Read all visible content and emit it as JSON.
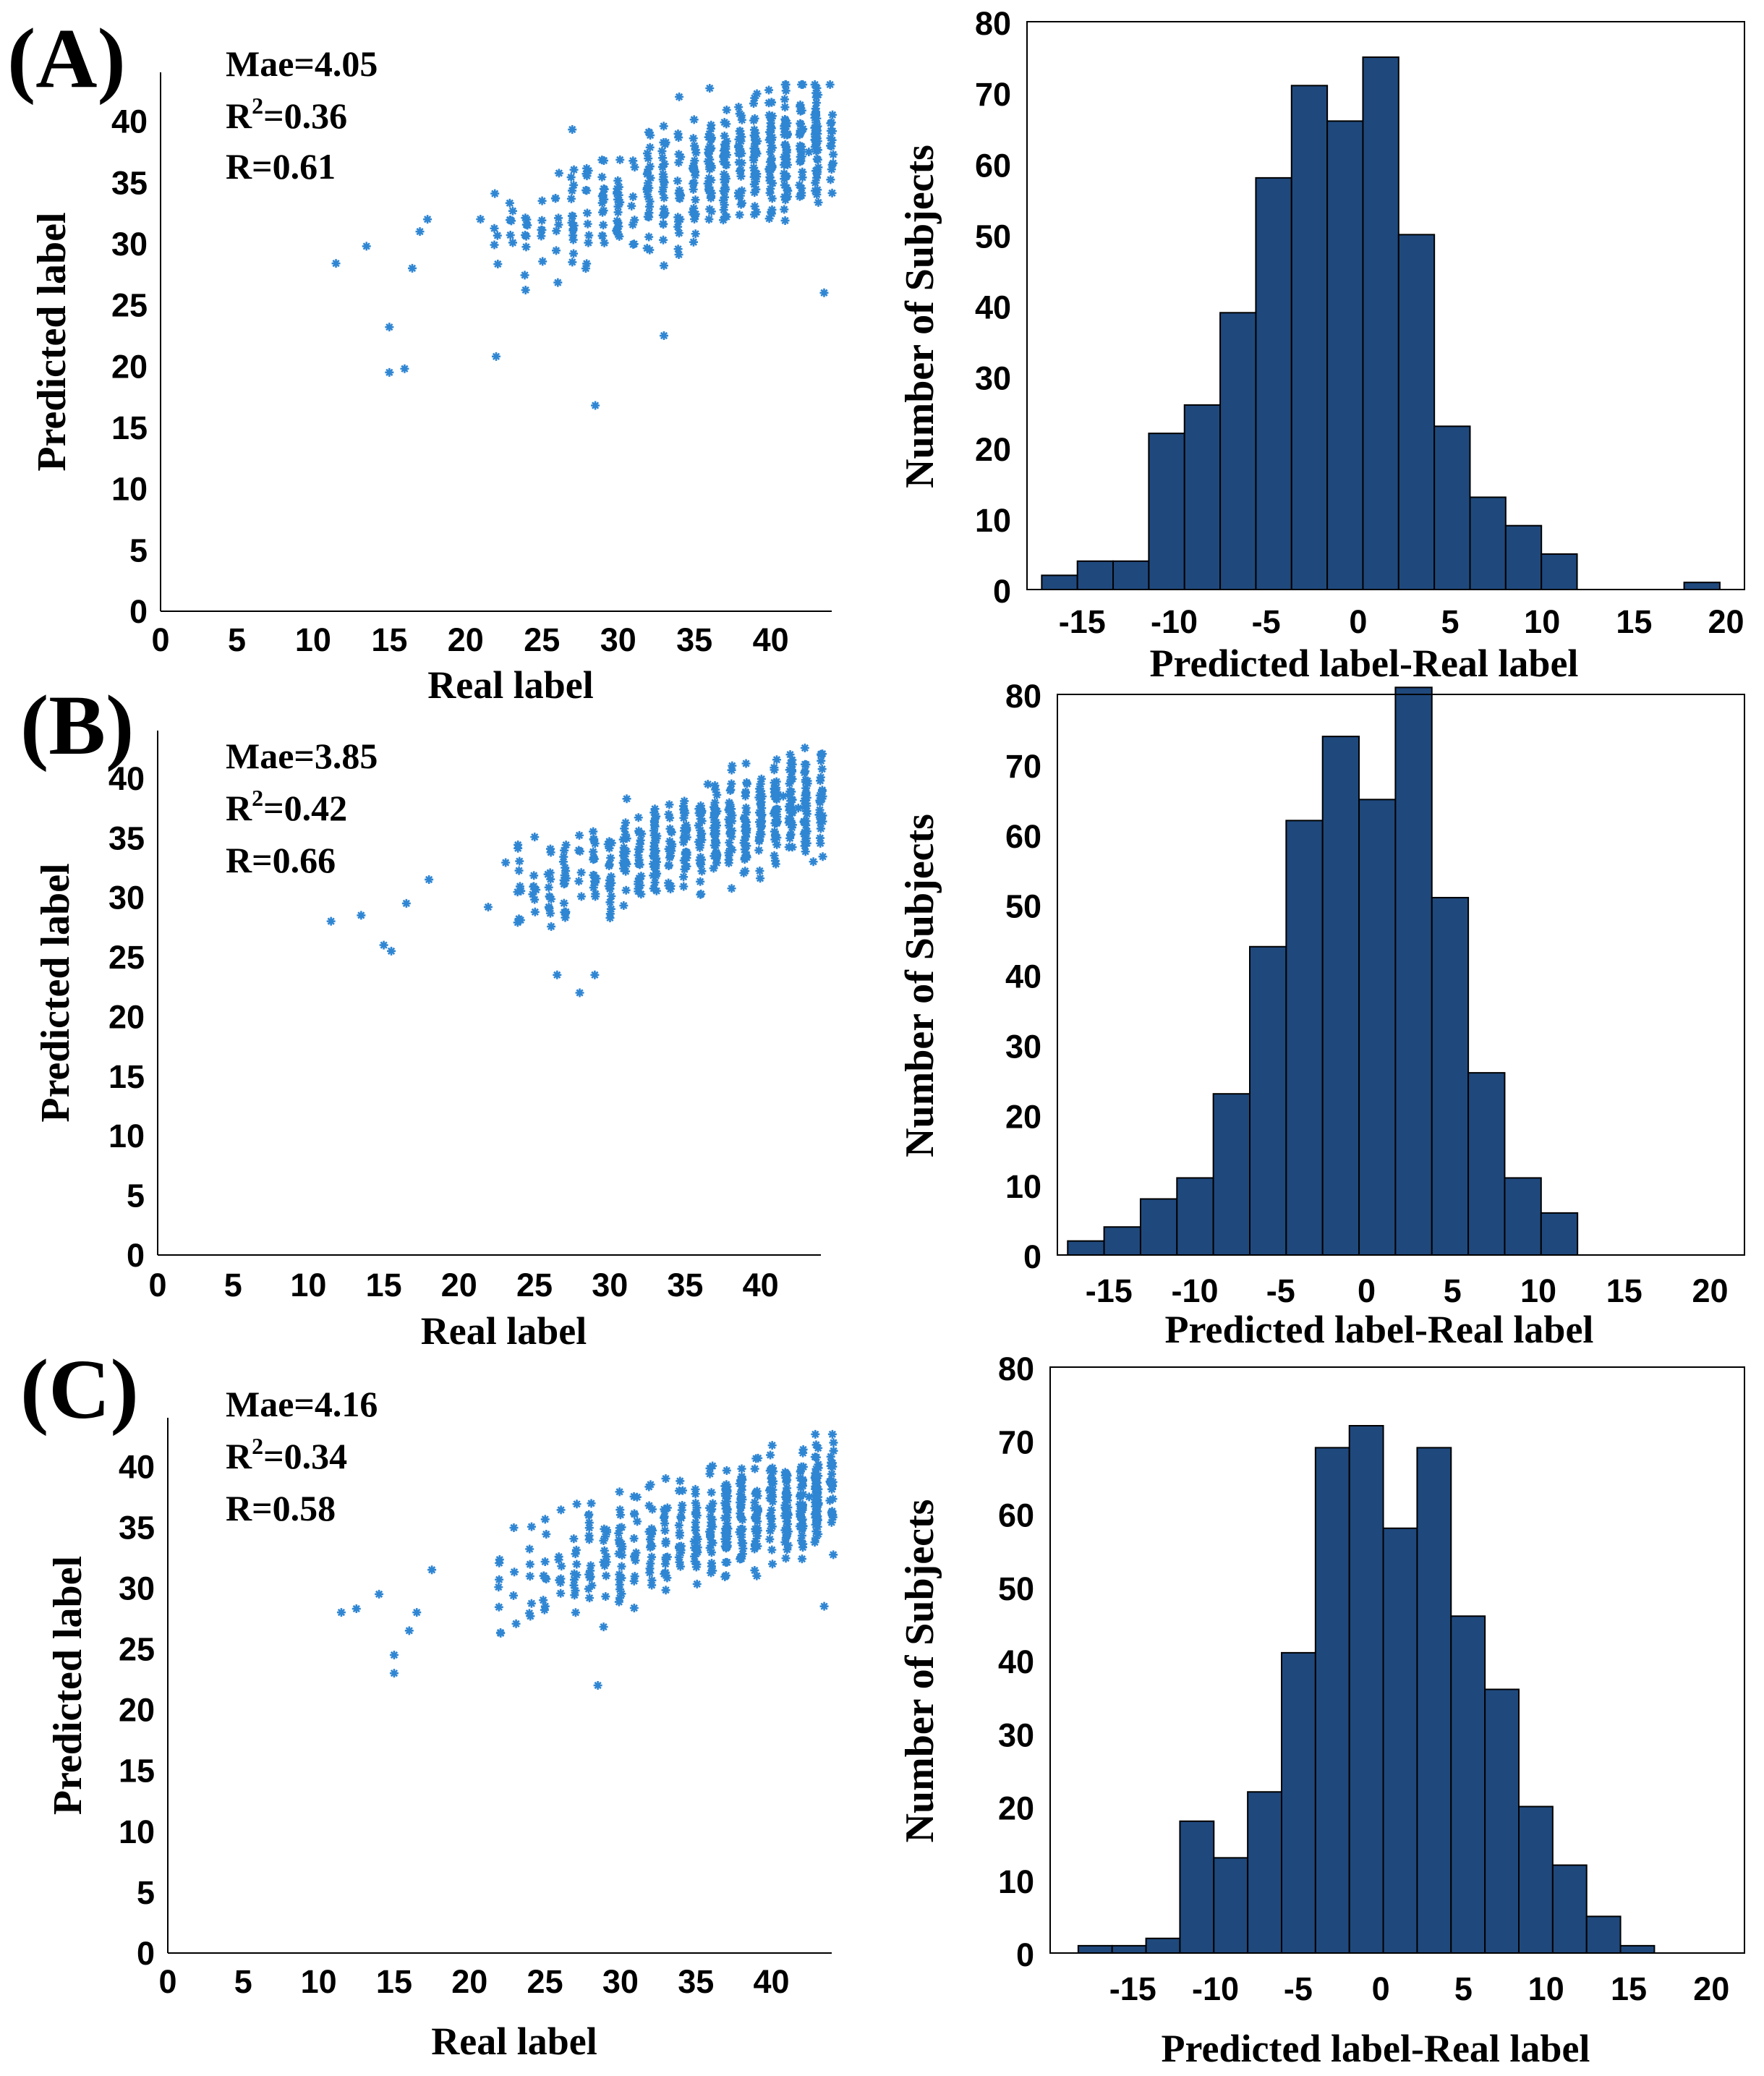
{
  "figure": {
    "colors": {
      "scatter": "#2f86d3",
      "bars": "#1f497d"
    },
    "panels": [
      {
        "label": "(A)",
        "stats": {
          "mae": "Mae=4.05",
          "r2_prefix": "R",
          "r2_sup": "2",
          "r2_value": "=0.36",
          "r": "R=0.61"
        }
      },
      {
        "label": "(B)",
        "stats": {
          "mae": "Mae=3.85",
          "r2_prefix": "R",
          "r2_sup": "2",
          "r2_value": "=0.42",
          "r": "R=0.66"
        }
      },
      {
        "label": "(C)",
        "stats": {
          "mae": "Mae=4.16",
          "r2_prefix": "R",
          "r2_sup": "2",
          "r2_value": "=0.34",
          "r": "R=0.58"
        }
      }
    ]
  },
  "chart_data": [
    {
      "type": "scatter",
      "panel": "A",
      "marker": "asterisk",
      "xlabel": "Real label",
      "ylabel": "Predicted label",
      "xlim": [
        0,
        44
      ],
      "ylim": [
        0,
        44
      ],
      "xticks": [
        0,
        5,
        10,
        15,
        20,
        25,
        30,
        35,
        40
      ],
      "yticks": [
        0,
        5,
        10,
        15,
        20,
        25,
        30,
        35,
        40
      ],
      "trend": {
        "slope": 0.37,
        "intercept": 22.5,
        "noise": 3.2,
        "n": 520,
        "x_range": [
          11,
          44
        ]
      },
      "points": [
        [
          11.5,
          28.4
        ],
        [
          13.5,
          29.8
        ],
        [
          15.0,
          19.5
        ],
        [
          16.0,
          19.8
        ],
        [
          15.0,
          23.2
        ],
        [
          16.5,
          28.0
        ],
        [
          17.0,
          31.0
        ],
        [
          17.5,
          32.0
        ],
        [
          28.5,
          16.8
        ],
        [
          22.0,
          20.8
        ],
        [
          33.0,
          22.5
        ],
        [
          43.5,
          26.0
        ],
        [
          42.5,
          37.5
        ],
        [
          41.0,
          42.5
        ],
        [
          36.0,
          42.7
        ],
        [
          34.0,
          42.0
        ]
      ]
    },
    {
      "type": "histogram",
      "panel": "A",
      "xlabel": "Predicted label-Real label",
      "ylabel": "Number of Subjects",
      "xlim": [
        -18,
        21
      ],
      "ylim": [
        0,
        80
      ],
      "xticks": [
        -15,
        -10,
        -5,
        0,
        5,
        10,
        15,
        20
      ],
      "yticks": [
        0,
        10,
        20,
        30,
        40,
        50,
        60,
        70,
        80
      ],
      "bin_width": 1.94,
      "bin_start": -17.2,
      "counts": [
        2,
        4,
        4,
        22,
        26,
        39,
        58,
        71,
        66,
        75,
        50,
        23,
        13,
        9,
        5,
        0,
        0,
        0,
        1
      ]
    },
    {
      "type": "scatter",
      "panel": "B",
      "marker": "asterisk",
      "xlabel": "Real label",
      "ylabel": "Predicted label",
      "xlim": [
        0,
        44
      ],
      "ylim": [
        0,
        44
      ],
      "xticks": [
        0,
        5,
        10,
        15,
        20,
        25,
        30,
        35,
        40
      ],
      "yticks": [
        0,
        5,
        10,
        15,
        20,
        25,
        30,
        35,
        40
      ],
      "trend": {
        "slope": 0.37,
        "intercept": 21.8,
        "noise": 2.6,
        "n": 520,
        "x_range": [
          11,
          44
        ]
      },
      "points": [
        [
          11.5,
          28.0
        ],
        [
          13.5,
          28.5
        ],
        [
          15.0,
          26.0
        ],
        [
          15.5,
          25.5
        ],
        [
          16.5,
          29.5
        ],
        [
          18.0,
          31.5
        ],
        [
          26.5,
          23.5
        ],
        [
          28.0,
          22.0
        ],
        [
          29.0,
          23.5
        ],
        [
          43.5,
          33.0
        ],
        [
          42.5,
          37.5
        ],
        [
          41.5,
          38.5
        ],
        [
          36.5,
          39.5
        ]
      ]
    },
    {
      "type": "histogram",
      "panel": "B",
      "xlabel": "Predicted label-Real label",
      "ylabel": "Number of Subjects",
      "xlim": [
        -18,
        22
      ],
      "ylim": [
        0,
        80
      ],
      "xticks": [
        -15,
        -10,
        -5,
        0,
        5,
        10,
        15,
        20
      ],
      "yticks": [
        0,
        10,
        20,
        30,
        40,
        50,
        60,
        70,
        80
      ],
      "bin_width": 2.12,
      "bin_start": -17.4,
      "counts": [
        2,
        4,
        8,
        11,
        23,
        44,
        62,
        74,
        65,
        81,
        51,
        26,
        11,
        6
      ]
    },
    {
      "type": "scatter",
      "panel": "C",
      "marker": "asterisk",
      "xlabel": "Real label",
      "ylabel": "Predicted label",
      "xlim": [
        0,
        44
      ],
      "ylim": [
        0,
        44
      ],
      "xticks": [
        0,
        5,
        10,
        15,
        20,
        25,
        30,
        35,
        40
      ],
      "yticks": [
        0,
        5,
        10,
        15,
        20,
        25,
        30,
        35,
        40
      ],
      "trend": {
        "slope": 0.35,
        "intercept": 22.5,
        "noise": 2.9,
        "n": 520,
        "x_range": [
          11,
          44
        ]
      },
      "points": [
        [
          11.5,
          28.0
        ],
        [
          12.5,
          28.3
        ],
        [
          14.0,
          29.5
        ],
        [
          15.0,
          24.5
        ],
        [
          15.0,
          23.0
        ],
        [
          16.0,
          26.5
        ],
        [
          16.5,
          28.0
        ],
        [
          17.5,
          31.5
        ],
        [
          28.5,
          22.0
        ],
        [
          43.5,
          28.5
        ],
        [
          42.5,
          37.5
        ],
        [
          40.0,
          39.0
        ],
        [
          33.0,
          39.0
        ]
      ]
    },
    {
      "type": "histogram",
      "panel": "C",
      "xlabel": "Predicted label-Real label",
      "ylabel": "Number of Subjects",
      "xlim": [
        -20,
        22
      ],
      "ylim": [
        0,
        80
      ],
      "xticks": [
        -15,
        -10,
        -5,
        0,
        5,
        10,
        15,
        20
      ],
      "yticks": [
        0,
        10,
        20,
        30,
        40,
        50,
        60,
        70,
        80
      ],
      "bin_width": 2.05,
      "bin_start": -18.3,
      "counts": [
        1,
        1,
        2,
        18,
        13,
        22,
        41,
        69,
        72,
        58,
        69,
        46,
        36,
        20,
        12,
        5,
        1
      ]
    }
  ]
}
